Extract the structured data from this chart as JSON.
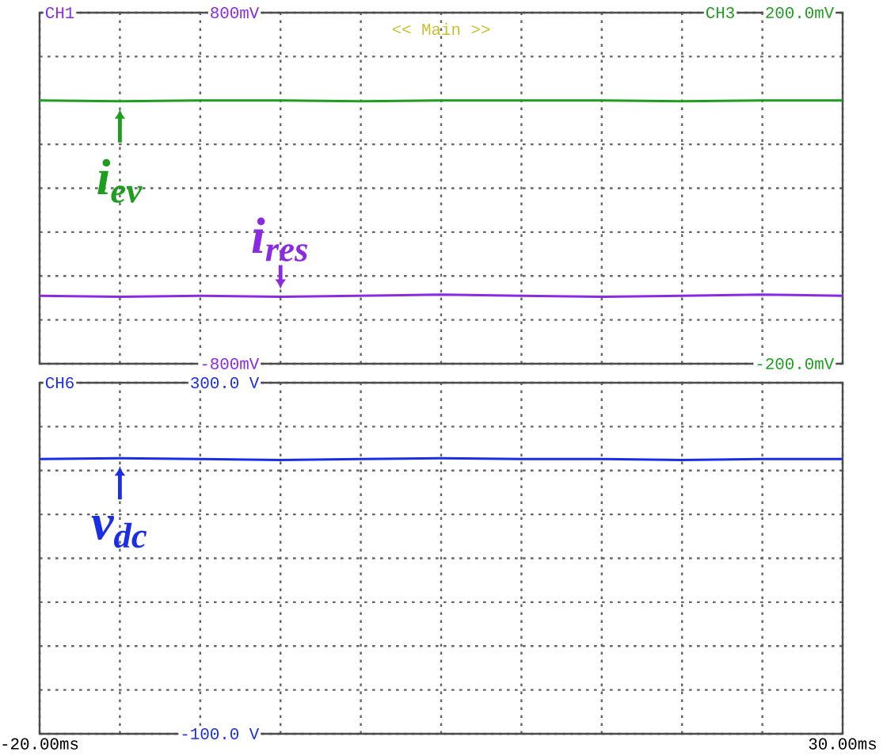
{
  "chart_data": [
    {
      "type": "line",
      "ylabel": "CH1",
      "y2label": "CH3",
      "annotations": [
        "<< Main >>"
      ],
      "grid": true,
      "tick_labels": "y",
      "x": [
        -20,
        -15,
        -10,
        -5,
        0,
        5,
        10,
        15,
        20,
        25,
        30
      ],
      "xlim": [
        -20,
        30
      ],
      "xticks": [
        {
          "value": -20,
          "label": null
        },
        {
          "value": -15,
          "label": null
        },
        {
          "value": -10,
          "label": null
        },
        {
          "value": -5,
          "label": null
        },
        {
          "value": 0,
          "label": null
        },
        {
          "value": 5,
          "label": null
        },
        {
          "value": 10,
          "label": null
        },
        {
          "value": 15,
          "label": null
        },
        {
          "value": 20,
          "label": null
        },
        {
          "value": 25,
          "label": null
        },
        {
          "value": 30,
          "label": null
        }
      ],
      "ylim": [
        -800,
        800
      ],
      "yticks": [
        {
          "value": 800,
          "label": "800mV"
        },
        {
          "value": 600,
          "label": null
        },
        {
          "value": 200,
          "label": null
        },
        {
          "value": 0,
          "label": null
        },
        {
          "value": -200,
          "label": null
        },
        {
          "value": -400,
          "label": null
        },
        {
          "value": -600,
          "label": null
        },
        {
          "value": -800,
          "label": "-800mV"
        }
      ],
      "y2lim": [
        -200,
        200
      ],
      "y2ticks": [
        {
          "value": 200,
          "label": "200.0mV"
        },
        {
          "value": -200,
          "label": "-200.0mV"
        }
      ],
      "series": [
        {
          "name": "i$_{ev}$",
          "color": "#1e9e1e",
          "axis": "y2",
          "values": [
            100,
            99,
            100,
            100,
            99,
            100,
            100,
            100,
            99,
            100,
            100
          ]
        },
        {
          "name": "i$_{res}$",
          "color": "#8a2be2",
          "axis": "y",
          "values": [
            -490,
            -495,
            -490,
            -495,
            -490,
            -485,
            -490,
            -495,
            -490,
            -485,
            -490
          ]
        }
      ]
    },
    {
      "type": "line",
      "ylabel": "CH6",
      "grid": true,
      "x": [
        -20,
        -15,
        -10,
        -5,
        0,
        5,
        10,
        15,
        20,
        25,
        30
      ],
      "xlim": [
        -20,
        30
      ],
      "xticks": [
        {
          "value": -20,
          "label": "-20.00ms"
        },
        {
          "value": -15,
          "label": null
        },
        {
          "value": -10,
          "label": null
        },
        {
          "value": -5,
          "label": null
        },
        {
          "value": 0,
          "label": null
        },
        {
          "value": 5,
          "label": null
        },
        {
          "value": 10,
          "label": null
        },
        {
          "value": 15,
          "label": null
        },
        {
          "value": 20,
          "label": null
        },
        {
          "value": 25,
          "label": null
        },
        {
          "value": 30,
          "label": "30.00ms"
        }
      ],
      "ylim": [
        -100,
        300
      ],
      "yticks": [
        {
          "value": 300,
          "label": "300.0 V"
        },
        {
          "value": 250,
          "label": null
        },
        {
          "value": 200,
          "label": null
        },
        {
          "value": 150,
          "label": null
        },
        {
          "value": 100,
          "label": null
        },
        {
          "value": 50,
          "label": null
        },
        {
          "value": 0,
          "label": null
        },
        {
          "value": -50,
          "label": null
        },
        {
          "value": -100,
          "label": "-100.0 V"
        }
      ],
      "series": [
        {
          "name": "v$_{dc}$",
          "color": "#1a2ee6",
          "axis": "y",
          "values": [
            213,
            214,
            213,
            212,
            213,
            214,
            213,
            213,
            212,
            213,
            213
          ]
        }
      ]
    }
  ]
}
